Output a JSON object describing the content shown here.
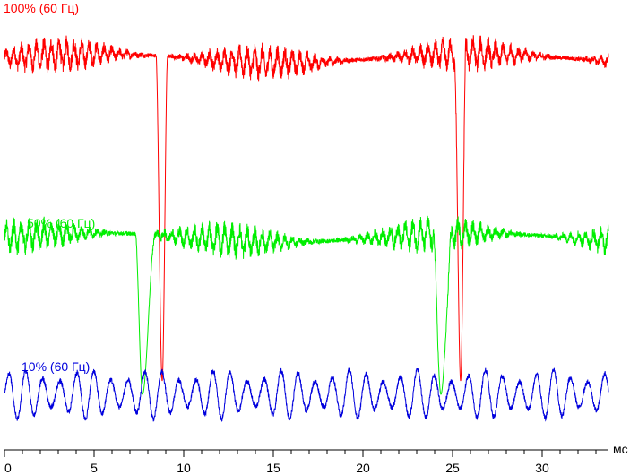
{
  "chart_data": {
    "type": "line",
    "title": "",
    "xlabel": "мс",
    "ylabel": "",
    "xlim": [
      0,
      33.7
    ],
    "x_ticks": [
      "0",
      "5",
      "10",
      "15",
      "20",
      "25",
      "30"
    ],
    "x_tick_values": [
      0,
      5,
      10,
      15,
      20,
      25,
      30
    ],
    "grid": false,
    "legend": "none",
    "series": [
      {
        "name": "100% (60 Гц)",
        "color": "#ff0000",
        "baseline_level": 0.87,
        "ripple_amplitude": 0.025,
        "dips": [
          {
            "x_start": 8.45,
            "x_min": 8.8,
            "x_end": 9.1,
            "min_level": 0.15
          },
          {
            "x_start": 25.1,
            "x_min": 25.45,
            "x_end": 25.75,
            "min_level": 0.15
          }
        ]
      },
      {
        "name": "50% (60 Гц)",
        "color": "#00ee00",
        "baseline_level": 0.47,
        "ripple_amplitude": 0.025,
        "dips": [
          {
            "x_start": 7.3,
            "x_min": 7.7,
            "x_end": 8.4,
            "min_level": 0.12
          },
          {
            "x_start": 23.9,
            "x_min": 24.35,
            "x_end": 25.0,
            "min_level": 0.12
          }
        ]
      },
      {
        "name": "10% (60 Гц)",
        "color": "#0000dd",
        "baseline_level": 0.12,
        "ripple_amplitude": 0.055,
        "dips": []
      }
    ]
  }
}
